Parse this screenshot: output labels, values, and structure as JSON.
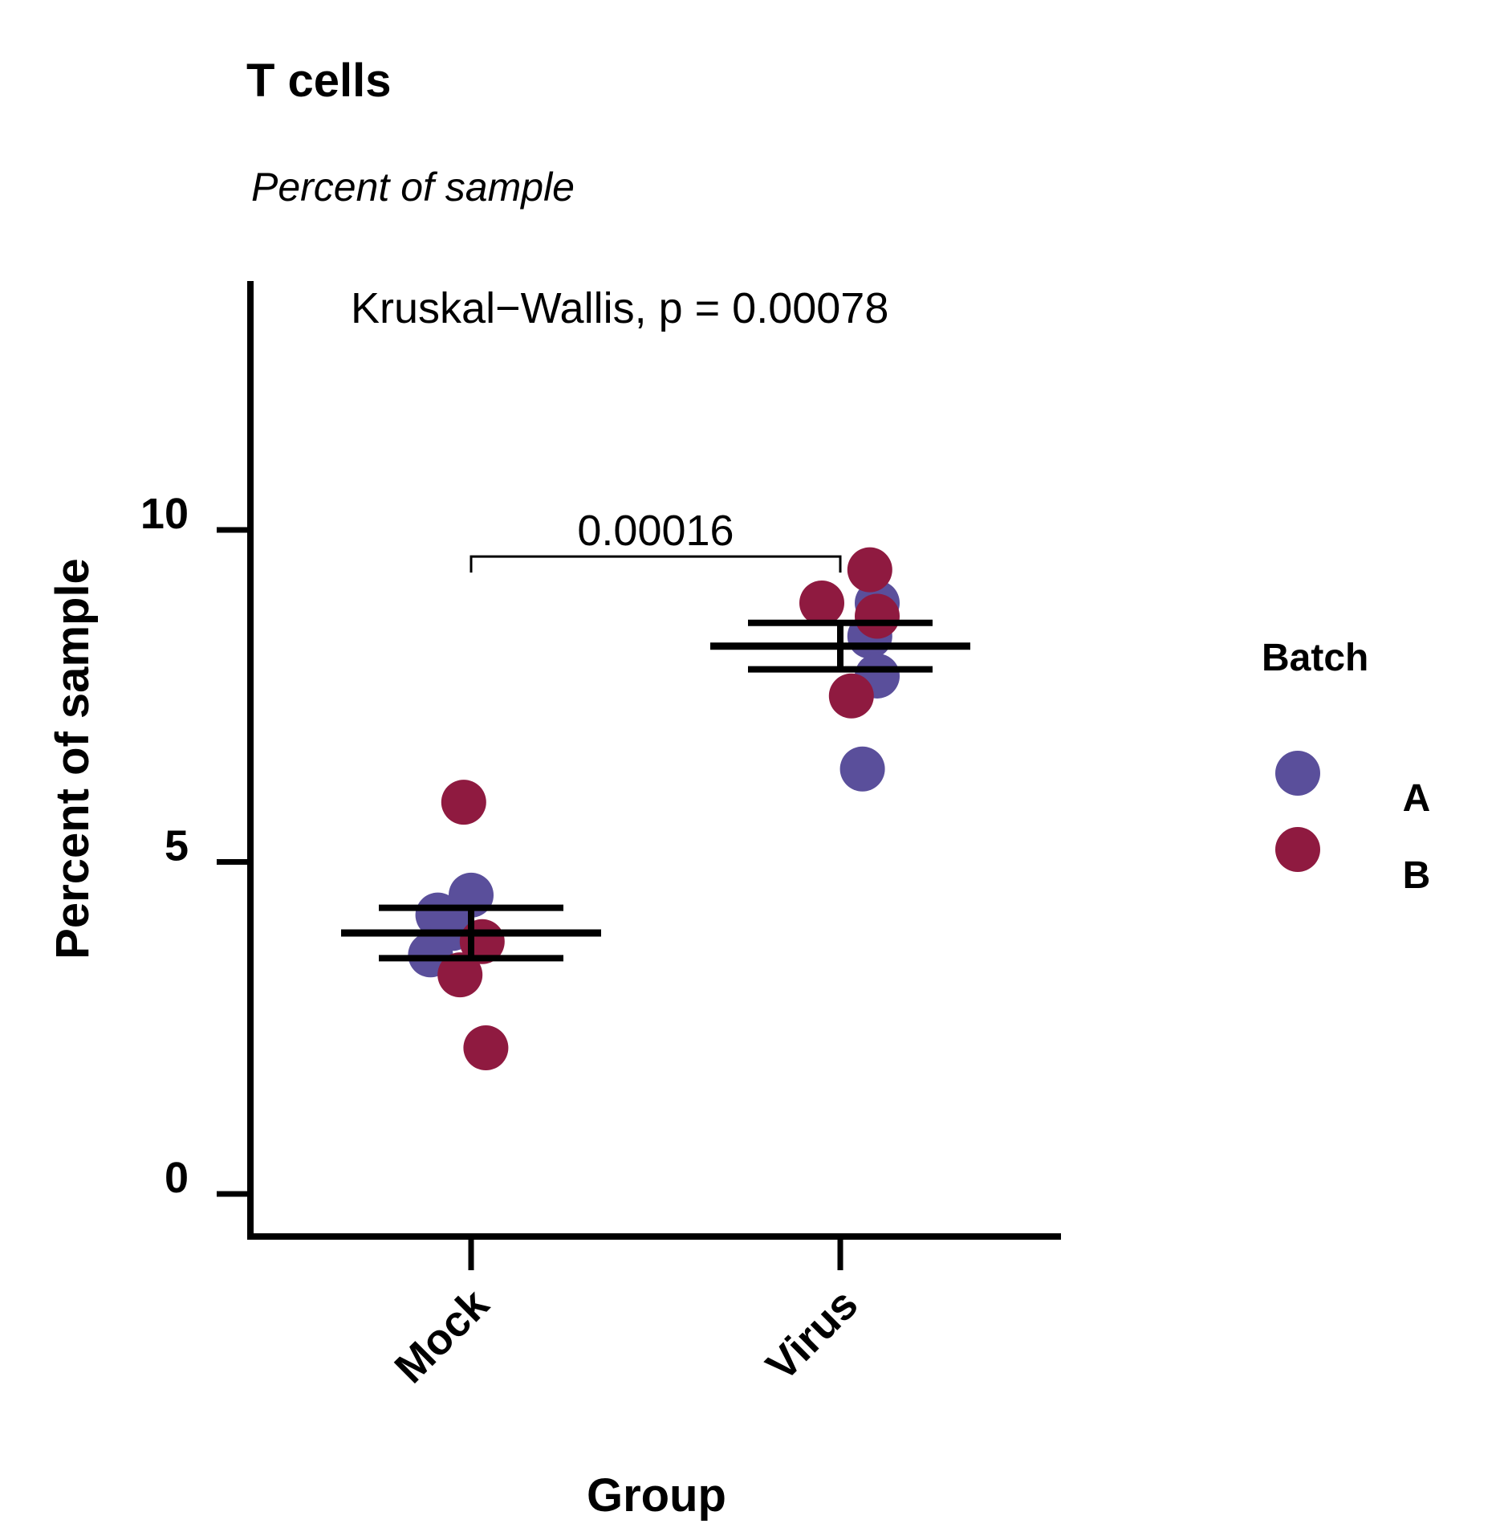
{
  "chart_data": {
    "type": "scatter",
    "title": "T cells",
    "subtitle": "Percent of sample",
    "xlabel": "Group",
    "ylabel": "Percent of sample",
    "categories": [
      "Mock",
      "Virus"
    ],
    "ylim": [
      -0.3,
      13.8
    ],
    "yticks": [
      0,
      5,
      10
    ],
    "grid": false,
    "test_annotation": "Kruskal−Wallis, p = 0.00078",
    "pairwise": {
      "groups": [
        "Mock",
        "Virus"
      ],
      "label": "0.00016",
      "bracket_y": 9.6
    },
    "legend": {
      "title": "Batch",
      "position": "right",
      "entries": [
        {
          "label": "A",
          "color": "#5a4f9b"
        },
        {
          "label": "B",
          "color": "#8f1a40"
        }
      ]
    },
    "series": [
      {
        "name": "A",
        "color": "#5a4f9b",
        "points": [
          {
            "group": "Mock",
            "jitter": 0.0,
            "y": 4.5
          },
          {
            "group": "Mock",
            "jitter": -0.09,
            "y": 4.2
          },
          {
            "group": "Mock",
            "jitter": -0.05,
            "y": 4.0
          },
          {
            "group": "Mock",
            "jitter": -0.11,
            "y": 3.6
          },
          {
            "group": "Virus",
            "jitter": 0.1,
            "y": 8.9
          },
          {
            "group": "Virus",
            "jitter": 0.08,
            "y": 8.4
          },
          {
            "group": "Virus",
            "jitter": 0.1,
            "y": 7.8
          },
          {
            "group": "Virus",
            "jitter": 0.06,
            "y": 6.4
          }
        ]
      },
      {
        "name": "B",
        "color": "#8f1a40",
        "points": [
          {
            "group": "Mock",
            "jitter": -0.02,
            "y": 5.9
          },
          {
            "group": "Mock",
            "jitter": 0.03,
            "y": 3.8
          },
          {
            "group": "Mock",
            "jitter": -0.03,
            "y": 3.3
          },
          {
            "group": "Mock",
            "jitter": 0.04,
            "y": 2.2
          },
          {
            "group": "Virus",
            "jitter": 0.08,
            "y": 9.4
          },
          {
            "group": "Virus",
            "jitter": -0.05,
            "y": 8.9
          },
          {
            "group": "Virus",
            "jitter": 0.1,
            "y": 8.7
          },
          {
            "group": "Virus",
            "jitter": 0.03,
            "y": 7.5
          }
        ]
      }
    ],
    "summary": [
      {
        "group": "Mock",
        "mean": 3.93,
        "se_low": 3.55,
        "se_high": 4.31
      },
      {
        "group": "Virus",
        "mean": 8.25,
        "se_low": 7.9,
        "se_high": 8.6
      }
    ]
  }
}
